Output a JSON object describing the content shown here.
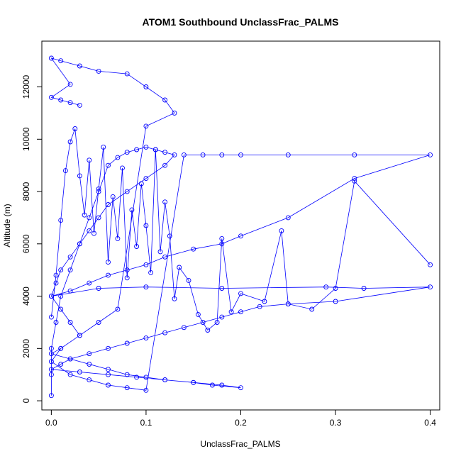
{
  "chart_data": {
    "type": "scatter",
    "title": "ATOM1 Southbound UnclassFrac_PALMS",
    "xlabel": "UnclassFrac_PALMS",
    "ylabel": "Altitude (m)",
    "xlim": [
      -0.01,
      0.41
    ],
    "ylim": [
      -350,
      13750
    ],
    "x_ticks": [
      0.0,
      0.1,
      0.2,
      0.3,
      0.4
    ],
    "x_tick_labels": [
      "0.0",
      "0.1",
      "0.2",
      "0.3",
      "0.4"
    ],
    "y_ticks": [
      0,
      2000,
      4000,
      6000,
      8000,
      10000,
      12000
    ],
    "y_tick_labels": [
      "0",
      "2000",
      "4000",
      "6000",
      "8000",
      "10000",
      "12000"
    ],
    "grid": false,
    "marker": "open-circle",
    "connect_points": true,
    "color": "#0000ff",
    "series": [
      {
        "x": [
          0.0,
          0.0,
          0.0,
          0.005,
          0.01,
          0.02,
          0.03,
          0.04,
          0.05,
          0.06,
          0.07,
          0.08,
          0.09,
          0.1,
          0.11,
          0.12,
          0.13,
          0.12,
          0.1,
          0.08,
          0.06,
          0.05,
          0.04,
          0.03,
          0.02,
          0.01,
          0.005,
          0.0,
          0.01,
          0.02,
          0.03,
          0.01,
          0.0,
          0.02,
          0.04,
          0.06,
          0.08,
          0.1,
          0.14,
          0.16,
          0.18,
          0.2,
          0.25,
          0.32,
          0.4,
          0.32,
          0.25,
          0.2,
          0.18,
          0.15,
          0.12,
          0.1,
          0.08,
          0.06,
          0.04,
          0.02,
          0.0,
          0.05,
          0.1,
          0.18,
          0.29,
          0.33,
          0.4,
          0.3,
          0.25,
          0.22,
          0.2,
          0.18,
          0.16,
          0.14,
          0.12,
          0.1,
          0.08,
          0.06,
          0.04,
          0.02,
          0.01,
          0.0,
          0.03,
          0.06,
          0.09,
          0.12,
          0.15,
          0.17,
          0.2,
          0.18,
          0.15,
          0.12,
          0.1,
          0.08,
          0.06,
          0.04,
          0.02,
          0.0,
          0.01,
          0.03,
          0.05,
          0.07,
          0.1,
          0.13,
          0.12,
          0.1,
          0.08,
          0.05,
          0.03,
          0.01,
          0.0,
          0.02,
          0.0,
          0.01,
          0.02,
          0.03
        ],
        "y": [
          200,
          1000,
          2000,
          3000,
          4000,
          5000,
          6000,
          7000,
          8000,
          9000,
          9300,
          9500,
          9600,
          9700,
          9600,
          9500,
          9400,
          9000,
          8500,
          8000,
          7500,
          7000,
          6500,
          6000,
          5500,
          5000,
          4500,
          4000,
          3500,
          3000,
          2500,
          2000,
          1500,
          1000,
          800,
          600,
          500,
          400,
          9400,
          9400,
          9400,
          9400,
          9400,
          9400,
          9400,
          8500,
          7000,
          6300,
          6000,
          5800,
          5500,
          5200,
          5000,
          4800,
          4500,
          4200,
          4000,
          4300,
          4350,
          4300,
          4350,
          4300,
          4350,
          3800,
          3700,
          3600,
          3400,
          3200,
          3000,
          2800,
          2600,
          2400,
          2200,
          2000,
          1800,
          1600,
          1400,
          1200,
          1100,
          1000,
          900,
          800,
          700,
          600,
          500,
          600,
          700,
          800,
          900,
          1000,
          1200,
          1400,
          1600,
          1800,
          2000,
          2500,
          3000,
          3500,
          10500,
          11000,
          11500,
          12000,
          12500,
          12600,
          12800,
          13000,
          13100,
          12100,
          11600,
          11500,
          11400,
          11300
        ]
      },
      {
        "x": [
          0.0,
          0.005,
          0.01,
          0.015,
          0.02,
          0.025,
          0.03,
          0.035,
          0.04,
          0.045,
          0.05,
          0.055,
          0.06,
          0.065,
          0.07,
          0.075,
          0.08,
          0.085,
          0.09,
          0.095,
          0.1,
          0.105,
          0.11,
          0.115,
          0.12,
          0.125,
          0.13,
          0.135,
          0.145,
          0.155,
          0.165,
          0.175,
          0.18,
          0.19,
          0.2,
          0.225,
          0.243,
          0.25,
          0.275,
          0.3,
          0.32,
          0.4
        ],
        "y": [
          3200,
          4800,
          6900,
          8800,
          9900,
          10400,
          8600,
          7100,
          9200,
          6400,
          8100,
          9700,
          5300,
          7800,
          6200,
          8900,
          4700,
          7300,
          5900,
          8300,
          6700,
          4900,
          9600,
          5700,
          7600,
          6300,
          3900,
          5100,
          4600,
          3300,
          2700,
          3000,
          6200,
          3400,
          4100,
          3800,
          6500,
          3700,
          3500,
          4300,
          8400,
          5200
        ]
      }
    ]
  }
}
